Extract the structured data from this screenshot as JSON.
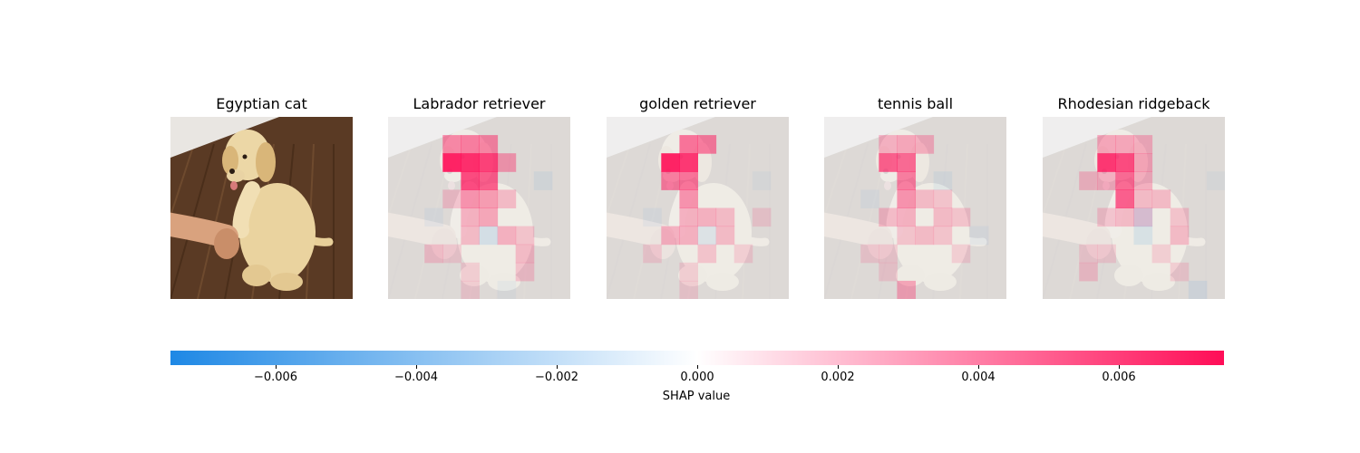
{
  "chart_data": {
    "type": "heatmap",
    "description_kind": "SHAP image explanation",
    "input_image": {
      "content": "puppy-photo"
    },
    "panels": [
      {
        "title": "Egyptian cat",
        "kind": "image"
      },
      {
        "title": "Labrador retriever",
        "kind": "shap",
        "hot": [
          [
            3,
            2,
            1.0
          ],
          [
            4,
            2,
            0.95
          ],
          [
            5,
            2,
            0.85
          ],
          [
            4,
            3,
            0.8
          ],
          [
            5,
            3,
            0.7
          ],
          [
            3,
            1,
            0.5
          ],
          [
            4,
            1,
            0.55
          ],
          [
            5,
            1,
            0.5
          ],
          [
            6,
            2,
            0.4
          ],
          [
            4,
            4,
            0.45
          ],
          [
            5,
            4,
            0.4
          ],
          [
            5,
            5,
            0.35
          ],
          [
            4,
            5,
            0.3
          ],
          [
            6,
            4,
            0.25
          ],
          [
            3,
            4,
            0.2
          ],
          [
            4,
            6,
            0.25
          ],
          [
            6,
            6,
            0.3
          ],
          [
            7,
            6,
            0.2
          ],
          [
            2,
            7,
            0.2
          ],
          [
            3,
            7,
            0.15
          ],
          [
            7,
            7,
            0.25
          ],
          [
            4,
            8,
            0.15
          ],
          [
            7,
            8,
            0.2
          ],
          [
            4,
            9,
            0.15
          ]
        ],
        "cold": [
          [
            5,
            6,
            0.15
          ],
          [
            8,
            3,
            0.08
          ],
          [
            2,
            5,
            0.06
          ],
          [
            6,
            9,
            0.05
          ]
        ]
      },
      {
        "title": "golden retriever",
        "kind": "shap",
        "hot": [
          [
            3,
            2,
            1.0
          ],
          [
            4,
            2,
            0.9
          ],
          [
            4,
            1,
            0.6
          ],
          [
            5,
            1,
            0.55
          ],
          [
            3,
            3,
            0.55
          ],
          [
            4,
            3,
            0.6
          ],
          [
            4,
            4,
            0.45
          ],
          [
            4,
            5,
            0.3
          ],
          [
            5,
            5,
            0.3
          ],
          [
            6,
            5,
            0.25
          ],
          [
            3,
            6,
            0.3
          ],
          [
            4,
            6,
            0.3
          ],
          [
            6,
            6,
            0.25
          ],
          [
            2,
            7,
            0.15
          ],
          [
            5,
            7,
            0.2
          ],
          [
            7,
            7,
            0.15
          ],
          [
            4,
            8,
            0.15
          ],
          [
            8,
            5,
            0.15
          ],
          [
            4,
            9,
            0.15
          ]
        ],
        "cold": [
          [
            2,
            5,
            0.06
          ],
          [
            5,
            6,
            0.1
          ],
          [
            8,
            3,
            0.05
          ]
        ]
      },
      {
        "title": "tennis ball",
        "kind": "shap",
        "hot": [
          [
            3,
            2,
            0.7
          ],
          [
            4,
            2,
            0.65
          ],
          [
            4,
            3,
            0.55
          ],
          [
            4,
            4,
            0.45
          ],
          [
            3,
            1,
            0.3
          ],
          [
            4,
            1,
            0.35
          ],
          [
            5,
            1,
            0.3
          ],
          [
            5,
            4,
            0.25
          ],
          [
            6,
            4,
            0.2
          ],
          [
            3,
            5,
            0.25
          ],
          [
            4,
            5,
            0.3
          ],
          [
            6,
            5,
            0.25
          ],
          [
            7,
            5,
            0.2
          ],
          [
            4,
            6,
            0.2
          ],
          [
            5,
            6,
            0.25
          ],
          [
            6,
            6,
            0.2
          ],
          [
            2,
            7,
            0.15
          ],
          [
            3,
            7,
            0.15
          ],
          [
            4,
            9,
            0.35
          ],
          [
            7,
            7,
            0.15
          ],
          [
            3,
            8,
            0.15
          ]
        ],
        "cold": [
          [
            6,
            3,
            0.08
          ],
          [
            2,
            4,
            0.06
          ],
          [
            8,
            6,
            0.06
          ]
        ]
      },
      {
        "title": "Rhodesian ridgeback",
        "kind": "shap",
        "hot": [
          [
            3,
            2,
            0.9
          ],
          [
            4,
            2,
            0.8
          ],
          [
            4,
            3,
            0.65
          ],
          [
            4,
            4,
            0.7
          ],
          [
            3,
            1,
            0.35
          ],
          [
            4,
            1,
            0.35
          ],
          [
            5,
            1,
            0.3
          ],
          [
            5,
            2,
            0.35
          ],
          [
            5,
            3,
            0.3
          ],
          [
            2,
            3,
            0.25
          ],
          [
            3,
            3,
            0.3
          ],
          [
            5,
            4,
            0.25
          ],
          [
            6,
            4,
            0.25
          ],
          [
            3,
            5,
            0.2
          ],
          [
            4,
            5,
            0.25
          ],
          [
            5,
            5,
            0.2
          ],
          [
            7,
            5,
            0.2
          ],
          [
            7,
            6,
            0.25
          ],
          [
            2,
            7,
            0.15
          ],
          [
            3,
            7,
            0.15
          ],
          [
            6,
            7,
            0.15
          ],
          [
            2,
            8,
            0.2
          ],
          [
            7,
            8,
            0.15
          ]
        ],
        "cold": [
          [
            5,
            5,
            0.15
          ],
          [
            5,
            6,
            0.12
          ],
          [
            8,
            9,
            0.1
          ],
          [
            9,
            3,
            0.05
          ]
        ]
      }
    ],
    "colorbar": {
      "range": [
        -0.0075,
        0.0075
      ],
      "ticks": [
        -0.006,
        -0.004,
        -0.002,
        0.0,
        0.002,
        0.004,
        0.006
      ],
      "tick_labels": [
        "−0.006",
        "−0.004",
        "−0.002",
        "0.000",
        "0.002",
        "0.004",
        "0.006"
      ],
      "label": "SHAP value",
      "negative_color": "#1e88e5",
      "positive_color": "#ff0d57"
    },
    "grid": false
  }
}
